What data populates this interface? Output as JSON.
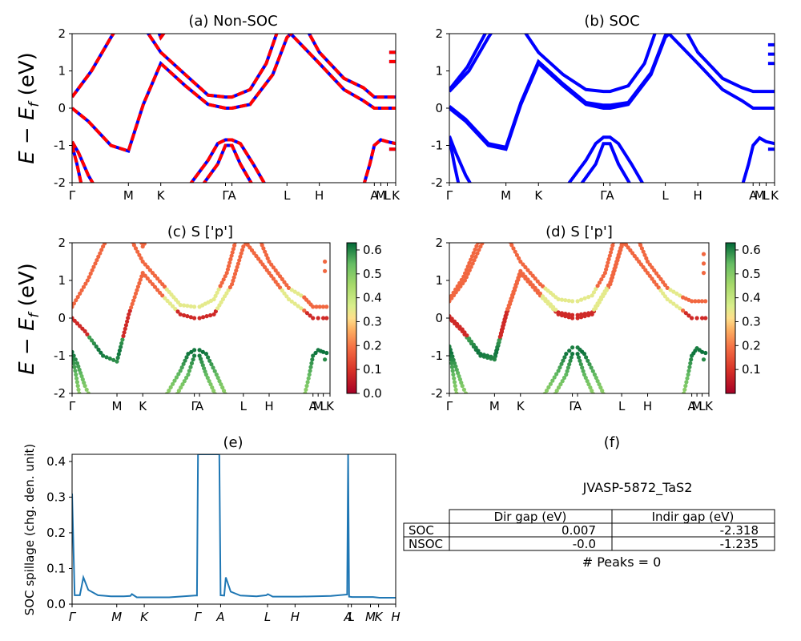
{
  "colors": {
    "nonsoc_primary": "#ff0000",
    "nonsoc_secondary": "#0000ff",
    "soc_band": "#0000ff",
    "spillage_line": "#1f77b4",
    "colormap": "RdYlGn"
  },
  "ylabel_main": "E − E_f (eV)",
  "kpath_labels": [
    "Γ",
    "M",
    "K",
    "Γ",
    "A",
    "L",
    "H",
    "A",
    "M",
    "L",
    "K"
  ],
  "panels": {
    "a": {
      "title": "(a) Non-SOC"
    },
    "b": {
      "title": "(b) SOC"
    },
    "c": {
      "title": "(c)  S ['p']",
      "colorbar_ticks": [
        "0.6",
        "0.5",
        "0.4",
        "0.3",
        "0.2",
        "0.1",
        "0.0"
      ]
    },
    "d": {
      "title": "(d) S ['p']",
      "colorbar_ticks": [
        "0.6",
        "0.5",
        "0.4",
        "0.3",
        "0.2",
        "0.1"
      ]
    },
    "e": {
      "title": "(e)",
      "ylabel": "SOC spillage (chg. den. unit)",
      "xticks": [
        "Γ",
        "M",
        "K",
        "Γ",
        "A",
        "L",
        "H",
        "A",
        "L",
        "M",
        "K",
        "H"
      ]
    },
    "f": {
      "title": "(f)"
    }
  },
  "table": {
    "material": "JVASP-5872_TaS2",
    "header": [
      "Dir gap (eV)",
      "Indir gap (eV)"
    ],
    "rows": [
      {
        "label": "SOC",
        "dir": "0.007",
        "indir": "-2.318"
      },
      {
        "label": "NSOC",
        "dir": "-0.0",
        "indir": "-1.235"
      }
    ],
    "peaks": "# Peaks = 0"
  },
  "chart_data": [
    {
      "type": "line",
      "panel": "a",
      "title": "(a) Non-SOC",
      "ylabel": "E − E_f (eV)",
      "ylim": [
        -2,
        2
      ],
      "yticks": [
        -2,
        -1,
        0,
        1,
        2
      ],
      "xticks": [
        "Γ",
        "M",
        "K",
        "Γ",
        "A",
        "L",
        "H",
        "A",
        "M",
        "L",
        "K"
      ],
      "xtick_pos": [
        0,
        0.174,
        0.274,
        0.474,
        0.494,
        0.664,
        0.764,
        0.934,
        0.954,
        0.974,
        1.0
      ],
      "series": [
        {
          "points": [
            [
              0,
              0
            ],
            [
              0.05,
              -0.35
            ],
            [
              0.12,
              -1.0
            ],
            [
              0.174,
              -1.15
            ],
            [
              0.22,
              0.1
            ],
            [
              0.274,
              1.2
            ],
            [
              0.35,
              0.6
            ],
            [
              0.42,
              0.1
            ],
            [
              0.474,
              0.0
            ],
            [
              0.494,
              0.0
            ],
            [
              0.55,
              0.1
            ],
            [
              0.62,
              0.9
            ],
            [
              0.664,
              1.9
            ],
            [
              0.7,
              2.2
            ]
          ]
        },
        {
          "points": [
            [
              0,
              0.3
            ],
            [
              0.06,
              1.0
            ],
            [
              0.12,
              1.9
            ],
            [
              0.15,
              2.3
            ]
          ]
        },
        {
          "points": [
            [
              0.22,
              2.2
            ],
            [
              0.274,
              1.5
            ],
            [
              0.35,
              0.9
            ],
            [
              0.42,
              0.35
            ],
            [
              0.474,
              0.3
            ],
            [
              0.494,
              0.3
            ],
            [
              0.55,
              0.5
            ],
            [
              0.6,
              1.2
            ],
            [
              0.64,
              2.2
            ]
          ]
        },
        {
          "points": [
            [
              0.664,
              2.1
            ],
            [
              0.764,
              1.2
            ],
            [
              0.84,
              0.5
            ],
            [
              0.9,
              0.2
            ],
            [
              0.934,
              0.0
            ],
            [
              0.954,
              0.0
            ],
            [
              0.974,
              0.0
            ],
            [
              1.0,
              0.0
            ]
          ]
        },
        {
          "points": [
            [
              0.72,
              2.2
            ],
            [
              0.764,
              1.5
            ],
            [
              0.84,
              0.8
            ],
            [
              0.9,
              0.55
            ],
            [
              0.934,
              0.3
            ],
            [
              1.0,
              0.3
            ]
          ]
        },
        {
          "points": [
            [
              0.26,
              2.2
            ],
            [
              0.274,
              1.9
            ],
            [
              0.3,
              2.2
            ]
          ]
        },
        {
          "points": [
            [
              0,
              -0.9
            ],
            [
              0.02,
              -1.2
            ],
            [
              0.05,
              -1.8
            ],
            [
              0.07,
              -2.1
            ]
          ]
        },
        {
          "points": [
            [
              0,
              -1.0
            ],
            [
              0.015,
              -1.5
            ],
            [
              0.03,
              -2.1
            ]
          ]
        },
        {
          "points": [
            [
              0.36,
              -2.1
            ],
            [
              0.42,
              -1.4
            ],
            [
              0.45,
              -0.95
            ],
            [
              0.474,
              -0.85
            ],
            [
              0.494,
              -0.85
            ],
            [
              0.52,
              -0.95
            ],
            [
              0.56,
              -1.5
            ],
            [
              0.6,
              -2.1
            ]
          ]
        },
        {
          "points": [
            [
              0.4,
              -2.1
            ],
            [
              0.45,
              -1.5
            ],
            [
              0.474,
              -1.0
            ],
            [
              0.494,
              -1.0
            ],
            [
              0.52,
              -1.5
            ],
            [
              0.56,
              -2.1
            ]
          ]
        },
        {
          "points": [
            [
              0.9,
              -2.1
            ],
            [
              0.92,
              -1.5
            ],
            [
              0.934,
              -1.0
            ],
            [
              0.954,
              -0.85
            ],
            [
              0.974,
              -0.9
            ],
            [
              1.0,
              -0.95
            ]
          ]
        },
        {
          "points": [
            [
              0.98,
              1.5
            ],
            [
              1.0,
              1.5
            ]
          ]
        },
        {
          "points": [
            [
              0.98,
              1.25
            ],
            [
              1.0,
              1.25
            ]
          ]
        },
        {
          "points": [
            [
              0.98,
              -1.1
            ],
            [
              1.0,
              -1.1
            ]
          ]
        }
      ]
    },
    {
      "type": "line",
      "panel": "b",
      "title": "(b) SOC",
      "ylim": [
        -2,
        2
      ],
      "yticks": [
        -2,
        -1,
        0,
        1,
        2
      ],
      "xticks": [
        "Γ",
        "M",
        "K",
        "Γ",
        "A",
        "L",
        "H",
        "A",
        "M",
        "L",
        "K"
      ],
      "xtick_pos": [
        0,
        0.174,
        0.274,
        0.474,
        0.494,
        0.664,
        0.764,
        0.934,
        0.954,
        0.974,
        1.0
      ],
      "series": [
        {
          "points": [
            [
              0,
              0
            ],
            [
              0.05,
              -0.35
            ],
            [
              0.12,
              -1.0
            ],
            [
              0.174,
              -1.1
            ],
            [
              0.22,
              0.1
            ],
            [
              0.274,
              1.2
            ],
            [
              0.35,
              0.6
            ],
            [
              0.42,
              0.1
            ],
            [
              0.474,
              0.0
            ],
            [
              0.494,
              0.0
            ],
            [
              0.55,
              0.1
            ],
            [
              0.62,
              0.9
            ],
            [
              0.664,
              1.9
            ],
            [
              0.7,
              2.2
            ]
          ]
        },
        {
          "points": [
            [
              0,
              0.05
            ],
            [
              0.05,
              -0.3
            ],
            [
              0.12,
              -0.95
            ],
            [
              0.174,
              -1.05
            ],
            [
              0.22,
              0.15
            ],
            [
              0.274,
              1.25
            ],
            [
              0.35,
              0.65
            ],
            [
              0.42,
              0.15
            ],
            [
              0.474,
              0.08
            ],
            [
              0.494,
              0.08
            ],
            [
              0.55,
              0.15
            ],
            [
              0.62,
              0.95
            ],
            [
              0.664,
              1.95
            ],
            [
              0.7,
              2.2
            ]
          ]
        },
        {
          "points": [
            [
              0,
              0.45
            ],
            [
              0.06,
              1.0
            ],
            [
              0.12,
              1.9
            ],
            [
              0.15,
              2.3
            ]
          ]
        },
        {
          "points": [
            [
              0,
              0.5
            ],
            [
              0.055,
              1.1
            ],
            [
              0.11,
              2.0
            ],
            [
              0.13,
              2.3
            ]
          ]
        },
        {
          "points": [
            [
              0.22,
              2.2
            ],
            [
              0.274,
              1.5
            ],
            [
              0.35,
              0.9
            ],
            [
              0.42,
              0.5
            ],
            [
              0.474,
              0.45
            ],
            [
              0.494,
              0.45
            ],
            [
              0.55,
              0.6
            ],
            [
              0.6,
              1.2
            ],
            [
              0.64,
              2.2
            ]
          ]
        },
        {
          "points": [
            [
              0.664,
              2.1
            ],
            [
              0.764,
              1.2
            ],
            [
              0.84,
              0.5
            ],
            [
              0.9,
              0.2
            ],
            [
              0.934,
              0.0
            ],
            [
              0.954,
              0.0
            ],
            [
              0.974,
              0.0
            ],
            [
              1.0,
              0.0
            ]
          ]
        },
        {
          "points": [
            [
              0.72,
              2.2
            ],
            [
              0.764,
              1.5
            ],
            [
              0.84,
              0.8
            ],
            [
              0.9,
              0.55
            ],
            [
              0.934,
              0.45
            ],
            [
              1.0,
              0.45
            ]
          ]
        },
        {
          "points": [
            [
              0,
              -0.75
            ],
            [
              0.02,
              -1.2
            ],
            [
              0.05,
              -1.8
            ],
            [
              0.07,
              -2.1
            ]
          ]
        },
        {
          "points": [
            [
              0,
              -0.8
            ],
            [
              0.015,
              -1.5
            ],
            [
              0.03,
              -2.1
            ]
          ]
        },
        {
          "points": [
            [
              0.36,
              -2.1
            ],
            [
              0.42,
              -1.4
            ],
            [
              0.45,
              -0.95
            ],
            [
              0.474,
              -0.78
            ],
            [
              0.494,
              -0.78
            ],
            [
              0.52,
              -0.95
            ],
            [
              0.56,
              -1.5
            ],
            [
              0.6,
              -2.1
            ]
          ]
        },
        {
          "points": [
            [
              0.4,
              -2.1
            ],
            [
              0.45,
              -1.5
            ],
            [
              0.474,
              -0.95
            ],
            [
              0.494,
              -0.95
            ],
            [
              0.52,
              -1.5
            ],
            [
              0.56,
              -2.1
            ]
          ]
        },
        {
          "points": [
            [
              0.9,
              -2.1
            ],
            [
              0.92,
              -1.5
            ],
            [
              0.934,
              -1.0
            ],
            [
              0.954,
              -0.8
            ],
            [
              0.974,
              -0.9
            ],
            [
              1.0,
              -0.95
            ]
          ]
        },
        {
          "points": [
            [
              0.98,
              1.7
            ],
            [
              1.0,
              1.7
            ]
          ]
        },
        {
          "points": [
            [
              0.98,
              1.45
            ],
            [
              1.0,
              1.45
            ]
          ]
        },
        {
          "points": [
            [
              0.98,
              1.2
            ],
            [
              1.0,
              1.2
            ]
          ]
        },
        {
          "points": [
            [
              0.98,
              -1.1
            ],
            [
              1.0,
              -1.1
            ]
          ]
        }
      ]
    },
    {
      "type": "scatter",
      "panel": "c",
      "title": "(c)  S ['p']",
      "ylim": [
        -2,
        2
      ],
      "yticks": [
        -2,
        -1,
        0,
        1,
        2
      ],
      "colorbar_range": [
        0.0,
        0.63
      ],
      "xticks": [
        "Γ",
        "M",
        "K",
        "Γ",
        "A",
        "L",
        "H",
        "A",
        "M",
        "L",
        "K"
      ],
      "xtick_pos": [
        0,
        0.174,
        0.274,
        0.474,
        0.494,
        0.664,
        0.764,
        0.934,
        0.954,
        0.974,
        1.0
      ],
      "note": "bands colored by S p-orbital weight"
    },
    {
      "type": "scatter",
      "panel": "d",
      "title": "(d) S ['p']",
      "ylim": [
        -2,
        2
      ],
      "yticks": [
        -2,
        -1,
        0,
        1,
        2
      ],
      "colorbar_range": [
        0.0,
        0.63
      ],
      "xticks": [
        "Γ",
        "M",
        "K",
        "Γ",
        "A",
        "L",
        "H",
        "A",
        "M",
        "L",
        "K"
      ],
      "xtick_pos": [
        0,
        0.174,
        0.274,
        0.474,
        0.494,
        0.664,
        0.764,
        0.934,
        0.954,
        0.974,
        1.0
      ]
    },
    {
      "type": "line",
      "panel": "e",
      "title": "(e)",
      "ylabel": "SOC spillage (chg. den. unit)",
      "ylim": [
        0.0,
        0.42
      ],
      "yticks": [
        0.0,
        0.1,
        0.2,
        0.3,
        0.4
      ],
      "xticks": [
        "Γ",
        "M",
        "K",
        "Γ",
        "A",
        "L",
        "H",
        "A",
        "L",
        "M",
        "K",
        "H"
      ],
      "xtick_pos": [
        0,
        0.138,
        0.223,
        0.388,
        0.459,
        0.604,
        0.689,
        0.853,
        0.863,
        0.922,
        0.947,
        1.0
      ],
      "x": [
        0,
        0.008,
        0.02,
        0.024,
        0.035,
        0.05,
        0.08,
        0.12,
        0.16,
        0.18,
        0.185,
        0.2,
        0.3,
        0.38,
        0.386,
        0.389,
        0.45,
        0.455,
        0.459,
        0.47,
        0.475,
        0.49,
        0.52,
        0.57,
        0.6,
        0.605,
        0.62,
        0.7,
        0.8,
        0.85,
        0.853,
        0.856,
        0.865,
        0.9,
        0.93,
        0.95,
        1.0
      ],
      "y": [
        0.31,
        0.025,
        0.025,
        0.025,
        0.075,
        0.04,
        0.025,
        0.022,
        0.022,
        0.023,
        0.028,
        0.019,
        0.019,
        0.024,
        0.024,
        0.42,
        0.42,
        0.42,
        0.025,
        0.024,
        0.075,
        0.035,
        0.024,
        0.022,
        0.025,
        0.028,
        0.021,
        0.021,
        0.023,
        0.027,
        0.42,
        0.021,
        0.02,
        0.02,
        0.02,
        0.018,
        0.018
      ]
    }
  ]
}
